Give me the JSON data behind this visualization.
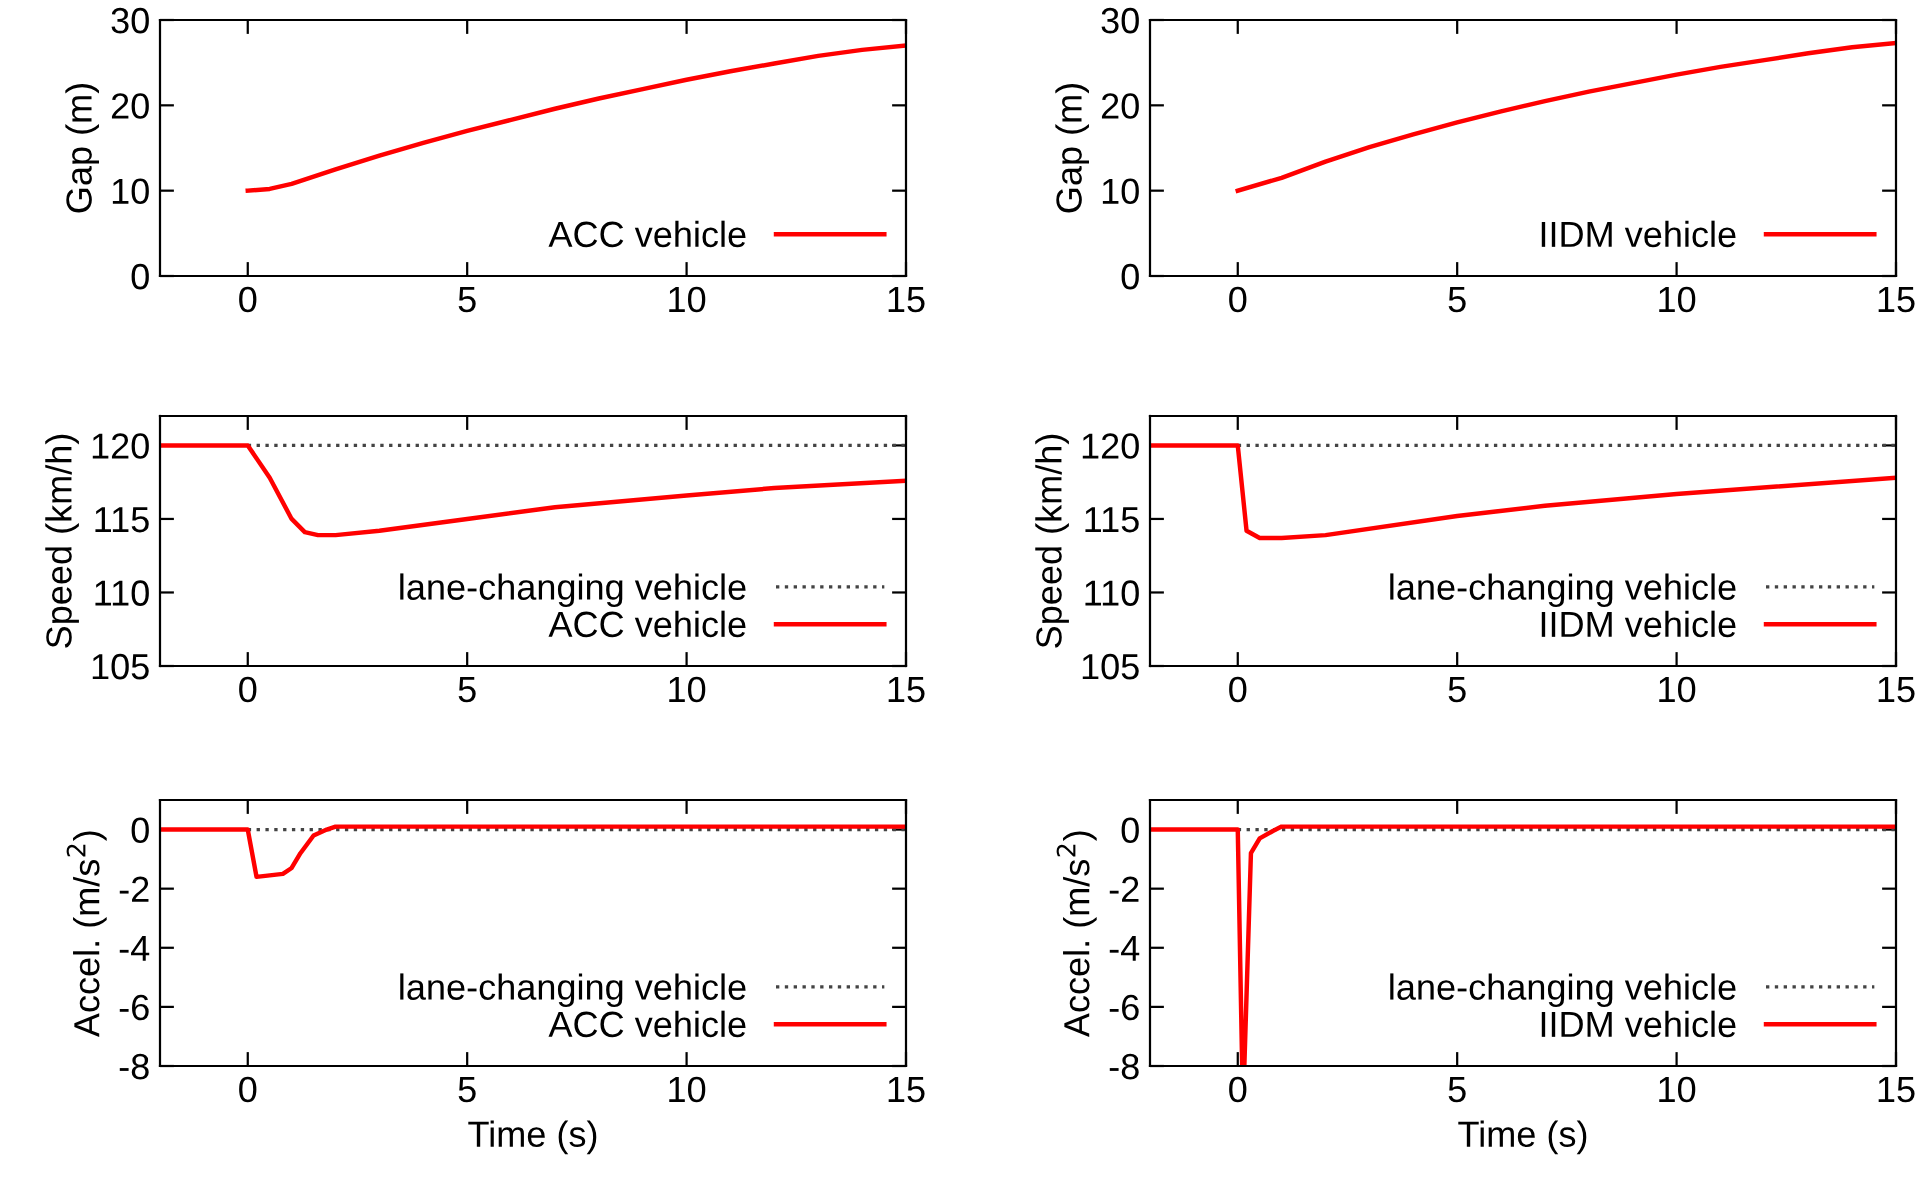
{
  "chart_data": [
    {
      "type": "line",
      "ylabel": "Gap (m)",
      "xlim": [
        -2,
        15
      ],
      "xticks": [
        0,
        5,
        10,
        15
      ],
      "ylim": [
        0,
        30
      ],
      "yticks": [
        0,
        10,
        20,
        30
      ],
      "grid": false,
      "legend": "bottom right",
      "series": [
        {
          "name": "ACC vehicle",
          "color": "#ff0000",
          "line_style": "solid",
          "x": [
            0,
            0.5,
            1,
            2,
            3,
            4,
            5,
            6,
            7,
            8,
            9,
            10,
            11,
            12,
            13,
            14,
            15
          ],
          "values": [
            10,
            10.2,
            10.8,
            12.5,
            14.1,
            15.6,
            17,
            18.3,
            19.6,
            20.8,
            21.9,
            23,
            24,
            24.9,
            25.8,
            26.5,
            27
          ]
        }
      ]
    },
    {
      "type": "line",
      "ylabel": "Gap (m)",
      "xlim": [
        -2,
        15
      ],
      "xticks": [
        0,
        5,
        10,
        15
      ],
      "ylim": [
        0,
        30
      ],
      "yticks": [
        0,
        10,
        20,
        30
      ],
      "grid": false,
      "legend": "bottom right",
      "series": [
        {
          "name": "IIDM vehicle",
          "color": "#ff0000",
          "line_style": "solid",
          "x": [
            0,
            1,
            2,
            3,
            4,
            5,
            6,
            7,
            8,
            9,
            10,
            11,
            12,
            13,
            14,
            15
          ],
          "values": [
            10,
            11.5,
            13.4,
            15.1,
            16.6,
            18,
            19.3,
            20.5,
            21.6,
            22.6,
            23.6,
            24.5,
            25.3,
            26.1,
            26.8,
            27.3
          ]
        }
      ]
    },
    {
      "type": "line",
      "ylabel": "Speed (km/h)",
      "xlim": [
        -2,
        15
      ],
      "xticks": [
        0,
        5,
        10,
        15
      ],
      "ylim": [
        105,
        122
      ],
      "yticks": [
        105,
        110,
        115,
        120
      ],
      "grid": false,
      "legend": "bottom right",
      "series": [
        {
          "name": "lane-changing vehicle",
          "color": "#444444",
          "line_style": "dotted",
          "x": [
            0,
            15
          ],
          "values": [
            120,
            120
          ]
        },
        {
          "name": "ACC vehicle",
          "color": "#ff0000",
          "line_style": "solid",
          "x": [
            -2,
            0,
            0.5,
            1,
            1.3,
            1.6,
            2,
            3,
            5,
            7,
            10,
            12,
            15
          ],
          "values": [
            120,
            120,
            117.8,
            115,
            114.1,
            113.9,
            113.9,
            114.2,
            115,
            115.8,
            116.6,
            117.1,
            117.6
          ]
        }
      ]
    },
    {
      "type": "line",
      "ylabel": "Speed (km/h)",
      "xlim": [
        -2,
        15
      ],
      "xticks": [
        0,
        5,
        10,
        15
      ],
      "ylim": [
        105,
        122
      ],
      "yticks": [
        105,
        110,
        115,
        120
      ],
      "grid": false,
      "legend": "bottom right",
      "series": [
        {
          "name": "lane-changing vehicle",
          "color": "#444444",
          "line_style": "dotted",
          "x": [
            0,
            15
          ],
          "values": [
            120,
            120
          ]
        },
        {
          "name": "IIDM vehicle",
          "color": "#ff0000",
          "line_style": "solid",
          "x": [
            -2,
            0,
            0.2,
            0.5,
            1,
            2,
            5,
            7,
            10,
            15
          ],
          "values": [
            120,
            120,
            114.2,
            113.7,
            113.7,
            113.9,
            115.2,
            115.9,
            116.7,
            117.8
          ]
        }
      ]
    },
    {
      "type": "line",
      "xlabel": "Time (s)",
      "ylabel": "Accel. (m/s$^{2}$)",
      "xlim": [
        -2,
        15
      ],
      "xticks": [
        0,
        5,
        10,
        15
      ],
      "ylim": [
        -8,
        1
      ],
      "yticks": [
        {
          "value": -8,
          "label": "-8"
        },
        {
          "value": -6,
          "label": "-6"
        },
        {
          "value": -4,
          "label": "-4"
        },
        {
          "value": -2,
          "label": "-2"
        },
        0
      ],
      "grid": false,
      "legend": "bottom right",
      "series": [
        {
          "name": "lane-changing vehicle",
          "color": "#444444",
          "line_style": "dotted",
          "x": [
            0,
            15
          ],
          "values": [
            0,
            0
          ]
        },
        {
          "name": "ACC vehicle",
          "color": "#ff0000",
          "line_style": "solid",
          "x": [
            -2,
            0,
            0.2,
            0.8,
            1,
            1.2,
            1.5,
            1.8,
            2,
            15
          ],
          "values": [
            0,
            0,
            -1.6,
            -1.5,
            -1.3,
            -0.8,
            -0.2,
            0,
            0.1,
            0.1
          ]
        }
      ]
    },
    {
      "type": "line",
      "xlabel": "Time (s)",
      "ylabel": "Accel. (m/s$^{2}$)",
      "xlim": [
        -2,
        15
      ],
      "xticks": [
        0,
        5,
        10,
        15
      ],
      "ylim": [
        -8,
        1
      ],
      "yticks": [
        {
          "value": -8,
          "label": "-8"
        },
        {
          "value": -6,
          "label": "-6"
        },
        {
          "value": -4,
          "label": "-4"
        },
        {
          "value": -2,
          "label": "-2"
        },
        0
      ],
      "grid": false,
      "legend": "bottom right",
      "series": [
        {
          "name": "lane-changing vehicle",
          "color": "#444444",
          "line_style": "dotted",
          "x": [
            0,
            15
          ],
          "values": [
            0,
            0
          ]
        },
        {
          "name": "IIDM vehicle",
          "color": "#ff0000",
          "line_style": "solid",
          "x": [
            -2,
            0,
            0.1,
            0.15,
            0.3,
            0.5,
            0.8,
            1,
            15
          ],
          "values": [
            0,
            0,
            -8,
            -8,
            -0.8,
            -0.3,
            -0.05,
            0.1,
            0.1
          ]
        }
      ]
    }
  ]
}
